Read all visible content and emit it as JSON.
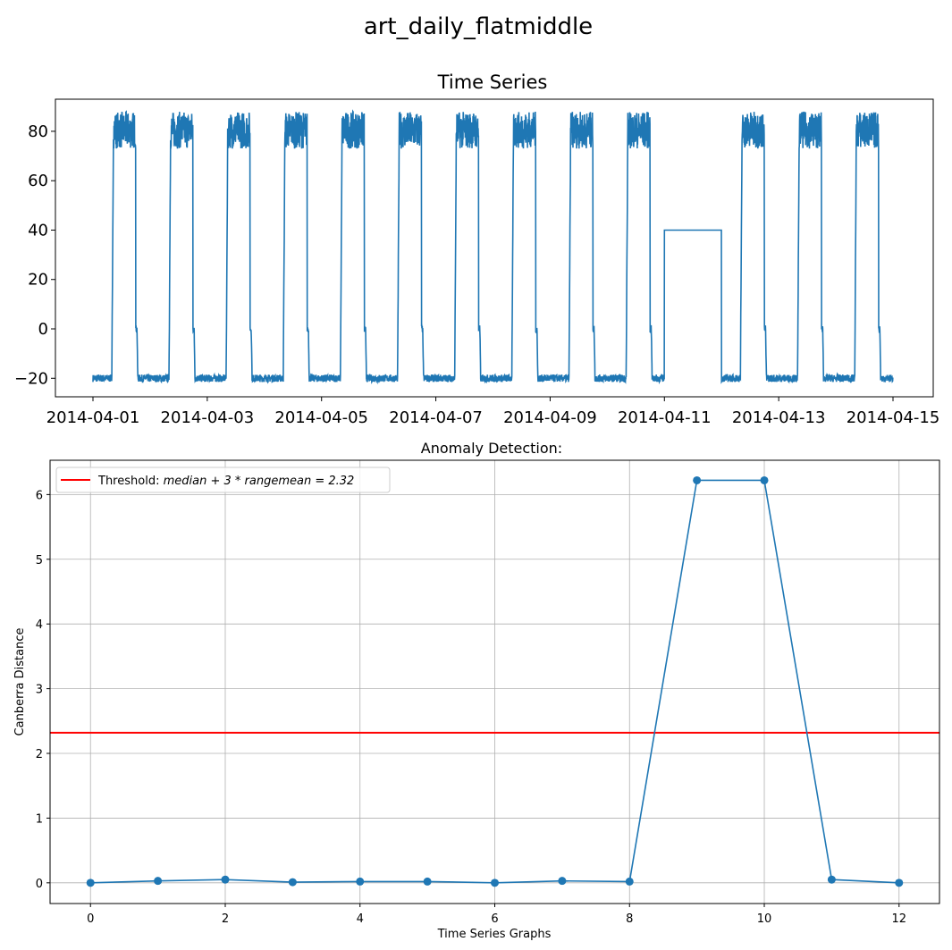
{
  "suptitle": "art_daily_flatmiddle",
  "colors": {
    "series": "#1f77b4",
    "threshold": "#ff0000",
    "grid": "#b0b0b0"
  },
  "chart_data": [
    {
      "type": "line",
      "title": "Time Series",
      "xlabel": "",
      "ylabel": "",
      "x_start": "2014-04-01",
      "x_end": "2014-04-15",
      "xticks": [
        "2014-04-01",
        "2014-04-03",
        "2014-04-05",
        "2014-04-07",
        "2014-04-09",
        "2014-04-11",
        "2014-04-13",
        "2014-04-15"
      ],
      "yticks": [
        -20,
        0,
        20,
        40,
        60,
        80
      ],
      "ylim": [
        -27.5,
        93
      ],
      "grid": false,
      "daily_pattern": {
        "low": -20,
        "high_min": 73,
        "high_max": 88,
        "step": 0,
        "day_fraction_rise": 0.35,
        "day_fraction_fall": 0.75
      },
      "flat_segment": {
        "start": "2014-04-11",
        "end": "2014-04-12",
        "value": 40
      }
    },
    {
      "type": "line",
      "title": "Anomaly Detection:",
      "xlabel": "Time Series Graphs",
      "ylabel": "Canberra Distance",
      "x": [
        0,
        1,
        2,
        3,
        4,
        5,
        6,
        7,
        8,
        9,
        10,
        11,
        12
      ],
      "values": [
        0.0,
        0.03,
        0.05,
        0.01,
        0.02,
        0.02,
        0.0,
        0.03,
        0.02,
        6.22,
        6.22,
        0.05,
        0.0
      ],
      "xticks": [
        0,
        2,
        4,
        6,
        8,
        10,
        12
      ],
      "yticks": [
        0,
        1,
        2,
        3,
        4,
        5,
        6
      ],
      "xlim": [
        -0.6,
        12.6
      ],
      "ylim": [
        -0.32,
        6.53
      ],
      "grid": true,
      "threshold": 2.32,
      "legend": {
        "placement": "upper-left",
        "label_prefix": "Threshold: ",
        "label_formula": "median + 3 * rangemean = 2.32"
      }
    }
  ]
}
